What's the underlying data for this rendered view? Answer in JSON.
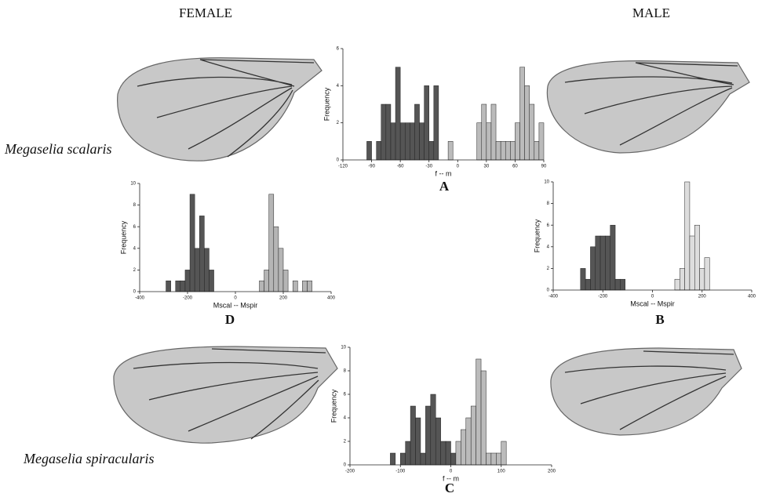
{
  "header": {
    "female": "FEMALE",
    "male": "MALE"
  },
  "species": [
    "Megaselia scalaris",
    "Megaselia spiracularis"
  ],
  "chart_data": [
    {
      "type": "histogram",
      "label": "A",
      "xlabel": "f -- m",
      "ylabel": "Frequency",
      "xlim": [
        -120,
        90
      ],
      "xticks": [
        -120,
        -90,
        -60,
        -30,
        0,
        30,
        60,
        90
      ],
      "ylim": [
        0,
        6
      ],
      "yticks": [
        0,
        2,
        4,
        6
      ],
      "series": [
        {
          "color": "#555555",
          "bins": [
            -95,
            -90,
            -85,
            -80,
            -75,
            -70,
            -65,
            -60,
            -55,
            -50,
            -45,
            -40,
            -35,
            -30,
            -25,
            -20
          ],
          "values": [
            1,
            0,
            1,
            3,
            3,
            2,
            5,
            2,
            2,
            2,
            3,
            2,
            4,
            1,
            4
          ]
        },
        {
          "color": "#bbbbbb",
          "bins": [
            -10,
            -5,
            0,
            5,
            10,
            15,
            20,
            25,
            30,
            35,
            40,
            45,
            50,
            55,
            60,
            65,
            70,
            75,
            80,
            85,
            90
          ],
          "values": [
            1,
            0,
            0,
            0,
            0,
            0,
            2,
            3,
            2,
            3,
            1,
            1,
            1,
            1,
            2,
            5,
            4,
            3,
            1,
            2
          ]
        }
      ]
    },
    {
      "type": "histogram",
      "label": "D",
      "xlabel": "Mscal -- Mspir",
      "ylabel": "Frequency",
      "xlim": [
        -400,
        400
      ],
      "xticks": [
        -400,
        -200,
        0,
        200,
        400
      ],
      "ylim": [
        0,
        10
      ],
      "yticks": [
        0,
        2,
        4,
        6,
        8,
        10
      ],
      "series": [
        {
          "color": "#555555",
          "bins": [
            -290,
            -270,
            -250,
            -230,
            -210,
            -190,
            -170,
            -150,
            -130,
            -110,
            -90
          ],
          "values": [
            1,
            0,
            1,
            1,
            2,
            9,
            4,
            7,
            4,
            2
          ]
        },
        {
          "color": "#b5b5b5",
          "bins": [
            100,
            120,
            140,
            160,
            180,
            200,
            220,
            240,
            260,
            280,
            300,
            320
          ],
          "values": [
            1,
            2,
            9,
            6,
            4,
            2,
            0,
            1,
            0,
            1,
            1
          ]
        }
      ]
    },
    {
      "type": "histogram",
      "label": "B",
      "xlabel": "Mscal -- Mspir",
      "ylabel": "Frequency",
      "xlim": [
        -400,
        400
      ],
      "xticks": [
        -400,
        -200,
        0,
        200,
        400
      ],
      "ylim": [
        0,
        10
      ],
      "yticks": [
        0,
        2,
        4,
        6,
        8,
        10
      ],
      "series": [
        {
          "color": "#555555",
          "bins": [
            -290,
            -270,
            -250,
            -230,
            -210,
            -190,
            -170,
            -150,
            -130,
            -110
          ],
          "values": [
            2,
            1,
            4,
            5,
            5,
            5,
            6,
            1,
            1
          ]
        },
        {
          "color": "#dddddd",
          "bins": [
            90,
            110,
            130,
            150,
            170,
            190,
            210,
            230
          ],
          "values": [
            1,
            2,
            10,
            5,
            6,
            2,
            3
          ]
        }
      ]
    },
    {
      "type": "histogram",
      "label": "C",
      "xlabel": "f -- m",
      "ylabel": "Frequency",
      "xlim": [
        -200,
        200
      ],
      "xticks": [
        -200,
        -100,
        0,
        100,
        200
      ],
      "ylim": [
        0,
        10
      ],
      "yticks": [
        0,
        2,
        4,
        6,
        8,
        10
      ],
      "series": [
        {
          "color": "#555555",
          "bins": [
            -120,
            -110,
            -100,
            -90,
            -80,
            -70,
            -60,
            -50,
            -40,
            -30,
            -20,
            -10,
            0,
            10
          ],
          "values": [
            1,
            0,
            1,
            2,
            5,
            4,
            1,
            5,
            6,
            4,
            2,
            2,
            1
          ]
        },
        {
          "color": "#bbbbbb",
          "bins": [
            10,
            20,
            30,
            40,
            50,
            60,
            70,
            80,
            90,
            100,
            110
          ],
          "values": [
            2,
            3,
            4,
            5,
            9,
            8,
            1,
            1,
            1,
            2
          ]
        }
      ]
    }
  ]
}
